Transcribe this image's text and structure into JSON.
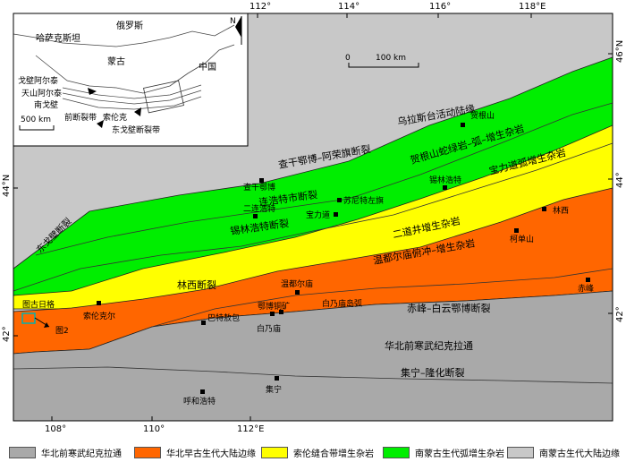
{
  "colors": {
    "craton": "#a9a9a9",
    "orange_margin": "#ff6600",
    "yellow_suture": "#ffff00",
    "green_arc": "#00ee00",
    "gray_margin": "#c8c8c8",
    "inset_box": "#00b0b0"
  },
  "axes": {
    "top_lon": [
      "112°",
      "114°",
      "116°",
      "118°E"
    ],
    "bottom_lon": [
      "108°",
      "110°",
      "112°E"
    ],
    "left_lat": [
      "44°N",
      "42°"
    ],
    "right_lat": [
      "46°N",
      "44°",
      "42°"
    ]
  },
  "scale_bar": {
    "zero": "0",
    "dist": "100 km"
  },
  "inset": {
    "north": "N",
    "russia": "俄罗斯",
    "kazakhstan": "哈萨克斯坦",
    "mongolia": "蒙古",
    "china": "中国",
    "gobi_altai": "戈壁阿尔泰",
    "tianshan_altai": "天山阿尔泰",
    "south_gobi": "南戈壁",
    "front_fault": "前断裂带",
    "solonker": "索伦克",
    "east_gobi_fault": "东戈壁断裂带",
    "scale": "500 km"
  },
  "faults": {
    "chagan": "查干鄂博–阿荣旗断裂",
    "lianhuote": "连浩特市断裂",
    "xilinhot": "锡林浩特断裂",
    "dong_gobi": "东戈壁断裂",
    "linxi": "林西断裂",
    "chifeng": "赤峰–白云鄂博断裂",
    "jining": "集宁–隆化断裂"
  },
  "units": {
    "ulastai": "乌拉斯台活动陆缘",
    "hegenshan": "贺根山蛇绿岩–弧–增生杂岩",
    "baolidao": "宝力道弧增生杂岩",
    "erdaojing": "二道井增生杂岩",
    "wendurmiao": "温都尔庙俯冲–增生杂岩",
    "bainaimiao": "白乃庙岛弧",
    "north_china": "华北前寒武纪克拉通"
  },
  "places": {
    "hegenshan": "贺根山",
    "xilinhot": "锡林浩特",
    "chaganobo": "查干鄂博",
    "erlianhot": "二连浩特",
    "sonid_zuoqi": "苏尼特左旗",
    "baolidao": "宝力道",
    "linxi": "林西",
    "kehuashan": "柯单山",
    "wendurmiao": "温都尔庙",
    "solon": "索伦克尔",
    "tugurige": "图古日格",
    "fig2": "图2",
    "bayinaobao": "巴特敖包",
    "ebotongkuang": "鄂博铜矿",
    "bainaimiao": "白乃庙",
    "chifeng": "赤峰",
    "hohhot": "呼和浩特",
    "jining": "集宁"
  },
  "legend": [
    {
      "label": "华北前寒武纪克拉通",
      "color": "#a9a9a9"
    },
    {
      "label": "华北早古生代大陆边缘",
      "color": "#ff6600"
    },
    {
      "label": "索伦缝合带增生杂岩",
      "color": "#ffff00"
    },
    {
      "label": "南蒙古生代弧增生杂岩",
      "color": "#00ee00"
    },
    {
      "label": "南蒙古生代大陆边缘",
      "color": "#c8c8c8"
    }
  ]
}
